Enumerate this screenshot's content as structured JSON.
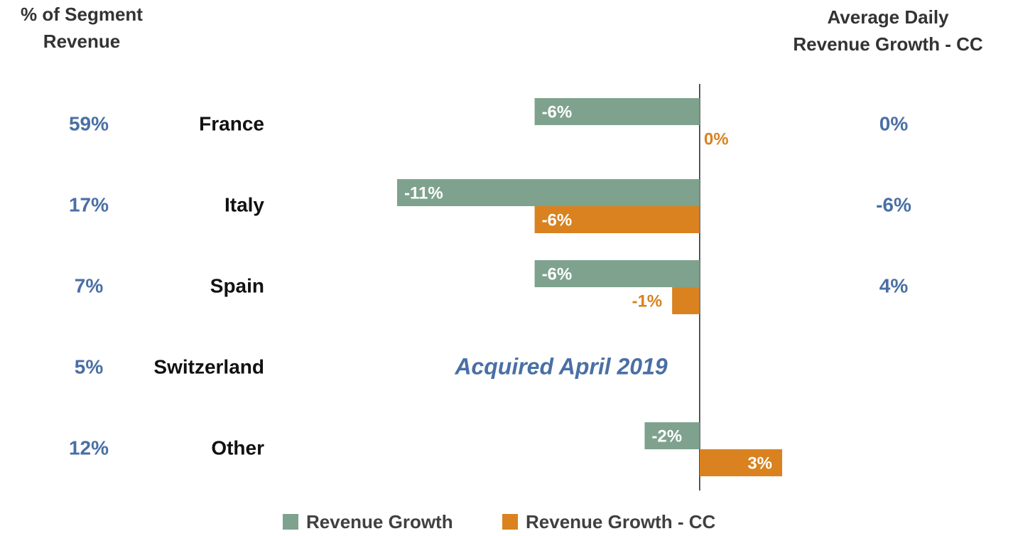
{
  "chart_data": {
    "type": "bar",
    "orientation": "horizontal",
    "categories": [
      "France",
      "Italy",
      "Spain",
      "Switzerland",
      "Other"
    ],
    "series": [
      {
        "name": "Revenue Growth",
        "color": "#7ea28e",
        "values": [
          -6,
          -11,
          -6,
          null,
          -2
        ],
        "value_labels": [
          "-6%",
          "-11%",
          "-6%",
          null,
          "-2%"
        ]
      },
      {
        "name": "Revenue Growth - CC",
        "color": "#d9821f",
        "values": [
          0,
          -6,
          -1,
          null,
          3
        ],
        "value_labels": [
          "0%",
          "-6%",
          "-1%",
          null,
          "3%"
        ]
      }
    ],
    "xlim": [
      -11,
      3
    ],
    "left_column": {
      "title": [
        "% of Segment",
        "Revenue"
      ],
      "values": [
        59,
        17,
        7,
        5,
        12
      ],
      "value_labels": [
        "59%",
        "17%",
        "7%",
        "5%",
        "12%"
      ]
    },
    "right_column": {
      "title": [
        "Average Daily",
        "Revenue Growth - CC"
      ],
      "values": [
        0,
        -6,
        4,
        null,
        null
      ],
      "value_labels": [
        "0%",
        "-6%",
        "4%",
        null,
        null
      ]
    },
    "annotations": [
      {
        "text": "Acquired April 2019",
        "category": 3
      }
    ],
    "legend": "bottom"
  }
}
